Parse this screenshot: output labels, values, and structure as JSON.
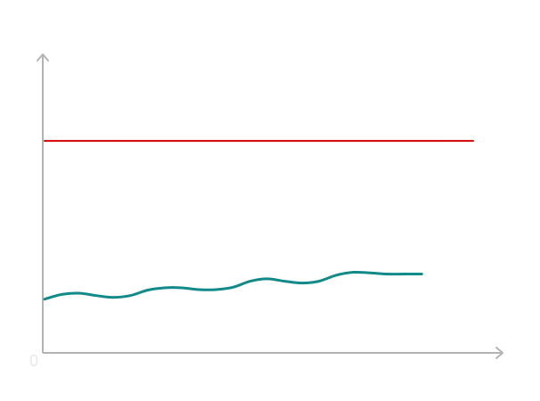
{
  "chart_data": {
    "type": "line",
    "title": "",
    "xlabel": "",
    "ylabel": "",
    "origin_label": "0",
    "grid": false,
    "legend": "none",
    "xlim": [
      0,
      100
    ],
    "ylim": [
      0,
      100
    ],
    "series": [
      {
        "color": "#d40000",
        "x": [
          0,
          100
        ],
        "y": [
          71,
          71
        ]
      },
      {
        "color": "#138a8a",
        "x": [
          0,
          4,
          8,
          12,
          16,
          20,
          24,
          28,
          32,
          36,
          40,
          44,
          48,
          52,
          56,
          60,
          64,
          68,
          72,
          76,
          80,
          84,
          88
        ],
        "y": [
          18,
          19.6,
          20,
          19.2,
          18.6,
          19.2,
          21,
          21.8,
          21.8,
          21.2,
          21.2,
          22,
          24,
          24.8,
          24,
          23.4,
          24,
          26,
          27,
          26.8,
          26.4,
          26.4,
          26.4
        ]
      }
    ]
  }
}
